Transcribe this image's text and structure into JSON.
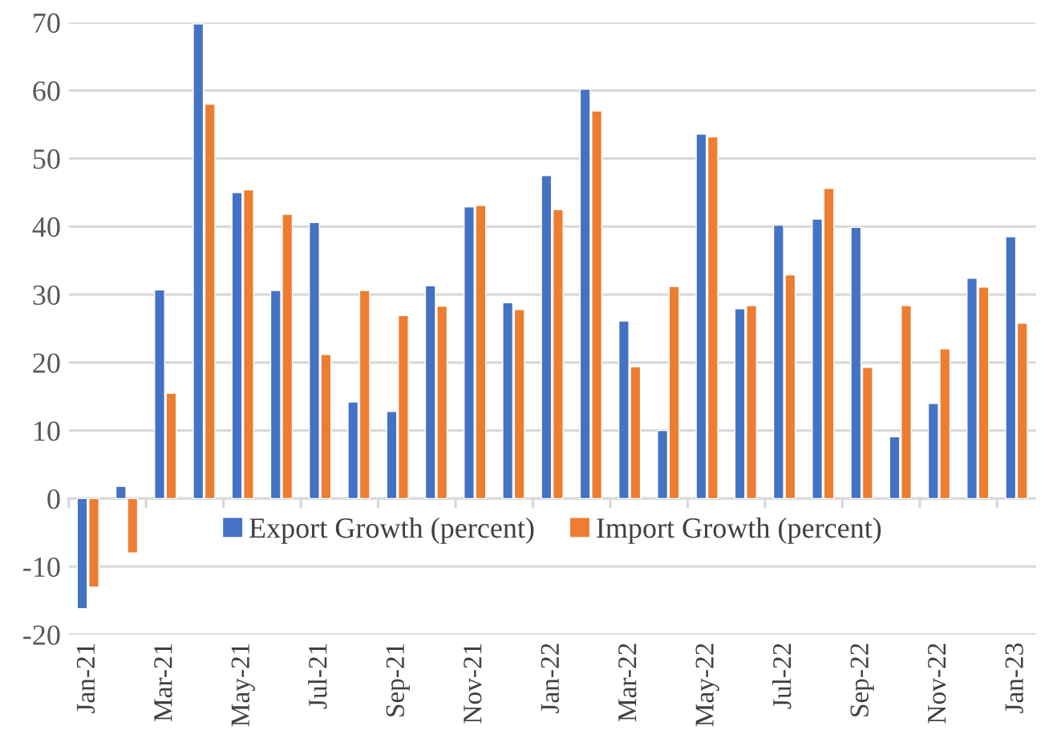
{
  "chart_data": {
    "type": "bar",
    "categories": [
      "Jan-21",
      null,
      "Mar-21",
      null,
      "May-21",
      null,
      "Jul-21",
      null,
      "Sep-21",
      null,
      "Nov-21",
      null,
      "Jan-22",
      null,
      "Mar-22",
      null,
      "May-22",
      null,
      "Jul-22",
      null,
      "Sep-22",
      null,
      "Nov-22",
      null,
      "Jan-23"
    ],
    "series": [
      {
        "name": "Export Growth (percent)",
        "color": "#4472c4",
        "values": [
          -16.2,
          1.8,
          30.7,
          69.8,
          45,
          30.6,
          40.6,
          14.2,
          12.8,
          31.3,
          42.9,
          28.8,
          47.5,
          60.2,
          26.1,
          10,
          53.6,
          27.9,
          40.2,
          41.1,
          39.9,
          9.1,
          14,
          32.4,
          38.5
        ]
      },
      {
        "name": "Import Growth (percent)",
        "color": "#ed7d31",
        "values": [
          -13,
          -8,
          15.5,
          58,
          45.4,
          41.8,
          21.2,
          30.6,
          26.9,
          28.3,
          43.1,
          27.8,
          42.5,
          57,
          19.4,
          31.2,
          53.2,
          28.4,
          32.9,
          45.6,
          19.3,
          28.4,
          22,
          31.1,
          25.8
        ]
      }
    ],
    "ylim": [
      -20,
      70
    ],
    "yticks": [
      -20,
      -10,
      0,
      10,
      20,
      30,
      40,
      50,
      60,
      70
    ],
    "grid": "y",
    "legend": "bottom"
  }
}
